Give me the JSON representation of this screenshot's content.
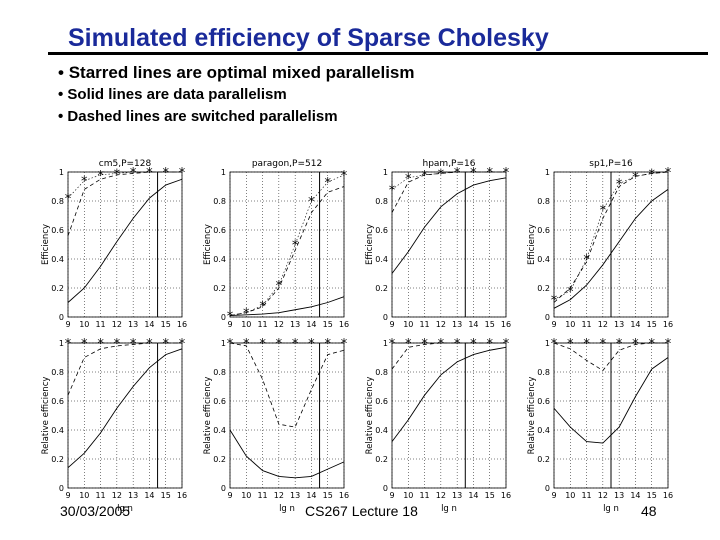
{
  "title": "Simulated efficiency of Sparse Cholesky",
  "bullets": [
    "Starred lines are optimal mixed parallelism",
    "Solid lines are data parallelism",
    "Dashed lines are switched parallelism"
  ],
  "footer": {
    "date": "30/03/2005",
    "course": "CS267 Lecture 18",
    "page": "48"
  },
  "chart_data": [
    {
      "type": "line",
      "title": "cm5,P=128",
      "xlabel": "",
      "ylabel": "Efficiency",
      "xlim": [
        9,
        16
      ],
      "ylim": [
        0,
        1
      ],
      "xticks": [
        9,
        10,
        11,
        12,
        13,
        14,
        15,
        16
      ],
      "yticks": [
        0,
        0.2,
        0.4,
        0.6,
        0.8,
        1
      ],
      "vline": 14.5,
      "series": [
        {
          "style": "solid",
          "x": [
            9,
            10,
            11,
            12,
            13,
            14,
            15,
            16
          ],
          "y": [
            0.1,
            0.2,
            0.35,
            0.52,
            0.68,
            0.82,
            0.91,
            0.95
          ]
        },
        {
          "style": "dashed",
          "x": [
            9,
            10,
            11,
            12,
            13,
            14,
            15,
            16
          ],
          "y": [
            0.56,
            0.88,
            0.95,
            0.98,
            0.99,
            1.0,
            1.0,
            1.0
          ]
        },
        {
          "style": "starred",
          "x": [
            9,
            10,
            11,
            12,
            13,
            14,
            15,
            16
          ],
          "y": [
            0.82,
            0.94,
            0.98,
            0.99,
            1.0,
            1.0,
            1.0,
            1.0
          ]
        }
      ]
    },
    {
      "type": "line",
      "title": "paragon,P=512",
      "xlabel": "",
      "ylabel": "Efficiency",
      "xlim": [
        9,
        16
      ],
      "ylim": [
        0,
        1
      ],
      "xticks": [
        9,
        10,
        11,
        12,
        13,
        14,
        15,
        16
      ],
      "yticks": [
        0,
        0.2,
        0.4,
        0.6,
        0.8,
        1
      ],
      "vline": 14.5,
      "series": [
        {
          "style": "solid",
          "x": [
            9,
            10,
            11,
            12,
            13,
            14,
            15,
            16
          ],
          "y": [
            0.01,
            0.015,
            0.02,
            0.03,
            0.05,
            0.07,
            0.1,
            0.14
          ]
        },
        {
          "style": "dashed",
          "x": [
            9,
            10,
            11,
            12,
            13,
            14,
            15,
            16
          ],
          "y": [
            0.01,
            0.03,
            0.07,
            0.2,
            0.46,
            0.72,
            0.86,
            0.9
          ]
        },
        {
          "style": "starred",
          "x": [
            9,
            10,
            11,
            12,
            13,
            14,
            15,
            16
          ],
          "y": [
            0.01,
            0.03,
            0.08,
            0.22,
            0.5,
            0.8,
            0.93,
            0.98
          ]
        }
      ]
    },
    {
      "type": "line",
      "title": "hpam,P=16",
      "xlabel": "",
      "ylabel": "Efficiency",
      "xlim": [
        9,
        16
      ],
      "ylim": [
        0,
        1
      ],
      "xticks": [
        9,
        10,
        11,
        12,
        13,
        14,
        15,
        16
      ],
      "yticks": [
        0,
        0.2,
        0.4,
        0.6,
        0.8,
        1
      ],
      "vline": 13.5,
      "series": [
        {
          "style": "solid",
          "x": [
            9,
            10,
            11,
            12,
            13,
            14,
            15,
            16
          ],
          "y": [
            0.3,
            0.45,
            0.62,
            0.76,
            0.85,
            0.91,
            0.94,
            0.96
          ]
        },
        {
          "style": "dashed",
          "x": [
            9,
            10,
            11,
            12,
            13,
            14,
            15,
            16
          ],
          "y": [
            0.72,
            0.93,
            0.98,
            0.99,
            1.0,
            1.0,
            1.0,
            1.0
          ]
        },
        {
          "style": "starred",
          "x": [
            9,
            10,
            11,
            12,
            13,
            14,
            15,
            16
          ],
          "y": [
            0.88,
            0.96,
            0.98,
            0.99,
            1.0,
            1.0,
            1.0,
            1.0
          ]
        }
      ]
    },
    {
      "type": "line",
      "title": "sp1,P=16",
      "xlabel": "",
      "ylabel": "Efficiency",
      "xlim": [
        9,
        16
      ],
      "ylim": [
        0,
        1
      ],
      "xticks": [
        9,
        10,
        11,
        12,
        13,
        14,
        15,
        16
      ],
      "yticks": [
        0,
        0.2,
        0.4,
        0.6,
        0.8,
        1
      ],
      "vline": 12.5,
      "series": [
        {
          "style": "solid",
          "x": [
            9,
            10,
            11,
            12,
            13,
            14,
            15,
            16
          ],
          "y": [
            0.06,
            0.12,
            0.22,
            0.36,
            0.52,
            0.68,
            0.8,
            0.88
          ]
        },
        {
          "style": "dashed",
          "x": [
            9,
            10,
            11,
            12,
            13,
            14,
            15,
            16
          ],
          "y": [
            0.1,
            0.2,
            0.38,
            0.68,
            0.9,
            0.97,
            0.99,
            1.0
          ]
        },
        {
          "style": "starred",
          "x": [
            9,
            10,
            11,
            12,
            13,
            14,
            15,
            16
          ],
          "y": [
            0.12,
            0.18,
            0.4,
            0.74,
            0.92,
            0.97,
            0.99,
            1.0
          ]
        }
      ]
    },
    {
      "type": "line",
      "title": "",
      "xlabel": "lg n",
      "ylabel": "Relative efficiency",
      "xlim": [
        9,
        16
      ],
      "ylim": [
        0,
        1
      ],
      "xticks": [
        9,
        10,
        11,
        12,
        13,
        14,
        15,
        16
      ],
      "yticks": [
        0,
        0.2,
        0.4,
        0.6,
        0.8,
        1
      ],
      "vline": 14.5,
      "series": [
        {
          "style": "solid",
          "x": [
            9,
            10,
            11,
            12,
            13,
            14,
            15,
            16
          ],
          "y": [
            0.14,
            0.24,
            0.38,
            0.55,
            0.7,
            0.83,
            0.92,
            0.96
          ]
        },
        {
          "style": "dashed",
          "x": [
            9,
            10,
            11,
            12,
            13,
            14,
            15,
            16
          ],
          "y": [
            0.64,
            0.9,
            0.96,
            0.98,
            0.99,
            1.0,
            1.0,
            1.0
          ]
        },
        {
          "style": "starred",
          "x": [
            9,
            10,
            11,
            12,
            13,
            14,
            15,
            16
          ],
          "y": [
            1,
            1,
            1,
            1,
            1,
            1,
            1,
            1
          ]
        }
      ]
    },
    {
      "type": "line",
      "title": "",
      "xlabel": "lg n",
      "ylabel": "Relative efficiency",
      "xlim": [
        9,
        16
      ],
      "ylim": [
        0,
        1
      ],
      "xticks": [
        9,
        10,
        11,
        12,
        13,
        14,
        15,
        16
      ],
      "yticks": [
        0,
        0.2,
        0.4,
        0.6,
        0.8,
        1
      ],
      "vline": 14.5,
      "series": [
        {
          "style": "solid",
          "x": [
            9,
            10,
            11,
            12,
            13,
            14,
            15,
            16
          ],
          "y": [
            0.4,
            0.22,
            0.12,
            0.08,
            0.07,
            0.08,
            0.13,
            0.18
          ]
        },
        {
          "style": "dashed",
          "x": [
            9,
            10,
            11,
            12,
            13,
            14,
            15,
            16
          ],
          "y": [
            1.0,
            0.98,
            0.75,
            0.44,
            0.42,
            0.68,
            0.92,
            0.95
          ]
        },
        {
          "style": "starred",
          "x": [
            9,
            10,
            11,
            12,
            13,
            14,
            15,
            16
          ],
          "y": [
            1,
            1,
            1,
            1,
            1,
            1,
            1,
            1
          ]
        }
      ]
    },
    {
      "type": "line",
      "title": "",
      "xlabel": "lg n",
      "ylabel": "Relative efficiency",
      "xlim": [
        9,
        16
      ],
      "ylim": [
        0,
        1
      ],
      "xticks": [
        9,
        10,
        11,
        12,
        13,
        14,
        15,
        16
      ],
      "yticks": [
        0,
        0.2,
        0.4,
        0.6,
        0.8,
        1
      ],
      "vline": 13.5,
      "series": [
        {
          "style": "solid",
          "x": [
            9,
            10,
            11,
            12,
            13,
            14,
            15,
            16
          ],
          "y": [
            0.32,
            0.47,
            0.64,
            0.78,
            0.87,
            0.92,
            0.95,
            0.97
          ]
        },
        {
          "style": "dashed",
          "x": [
            9,
            10,
            11,
            12,
            13,
            14,
            15,
            16
          ],
          "y": [
            0.82,
            0.97,
            0.99,
            1.0,
            1.0,
            1.0,
            1.0,
            1.0
          ]
        },
        {
          "style": "starred",
          "x": [
            9,
            10,
            11,
            12,
            13,
            14,
            15,
            16
          ],
          "y": [
            1,
            1,
            1,
            1,
            1,
            1,
            1,
            1
          ]
        }
      ]
    },
    {
      "type": "line",
      "title": "",
      "xlabel": "lg n",
      "ylabel": "Relative efficiency",
      "xlim": [
        9,
        16
      ],
      "ylim": [
        0,
        1
      ],
      "xticks": [
        9,
        10,
        11,
        12,
        13,
        14,
        15,
        16
      ],
      "yticks": [
        0,
        0.2,
        0.4,
        0.6,
        0.8,
        1
      ],
      "vline": 12.5,
      "series": [
        {
          "style": "solid",
          "x": [
            9,
            10,
            11,
            12,
            13,
            14,
            15,
            16
          ],
          "y": [
            0.55,
            0.42,
            0.32,
            0.31,
            0.42,
            0.63,
            0.82,
            0.9
          ]
        },
        {
          "style": "dashed",
          "x": [
            9,
            10,
            11,
            12,
            13,
            14,
            15,
            16
          ],
          "y": [
            1.0,
            0.96,
            0.88,
            0.81,
            0.95,
            0.99,
            1.0,
            1.0
          ]
        },
        {
          "style": "starred",
          "x": [
            9,
            10,
            11,
            12,
            13,
            14,
            15,
            16
          ],
          "y": [
            1,
            1,
            1,
            1,
            1,
            1,
            1,
            1
          ]
        }
      ]
    }
  ]
}
